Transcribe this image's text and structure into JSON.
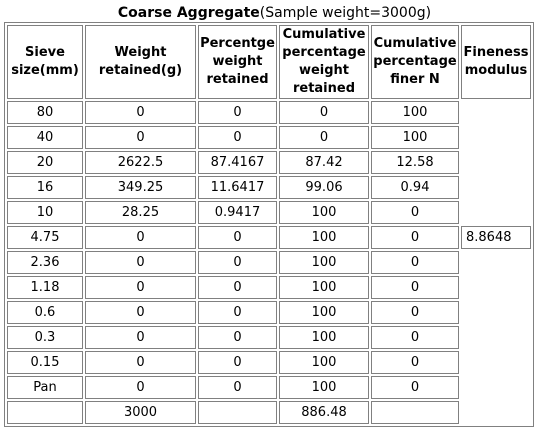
{
  "caption": {
    "title": "Coarse Aggregate",
    "subtitle": "(Sample weight=3000g)"
  },
  "headers": [
    "Sieve size(mm)",
    "Weight retained(g)",
    "Percentge weight retained",
    "Cumulative percentage weight retained",
    "Cumulative percentage finer N",
    "Fineness modulus"
  ],
  "rows": [
    [
      "80",
      "0",
      "0",
      "0",
      "100"
    ],
    [
      "40",
      "0",
      "0",
      "0",
      "100"
    ],
    [
      "20",
      "2622.5",
      "87.4167",
      "87.42",
      "12.58"
    ],
    [
      "16",
      "349.25",
      "11.6417",
      "99.06",
      "0.94"
    ],
    [
      "10",
      "28.25",
      "0.9417",
      "100",
      "0"
    ],
    [
      "4.75",
      "0",
      "0",
      "100",
      "0"
    ],
    [
      "2.36",
      "0",
      "0",
      "100",
      "0"
    ],
    [
      "1.18",
      "0",
      "0",
      "100",
      "0"
    ],
    [
      "0.6",
      "0",
      "0",
      "100",
      "0"
    ],
    [
      "0.3",
      "0",
      "0",
      "100",
      "0"
    ],
    [
      "0.15",
      "0",
      "0",
      "100",
      "0"
    ],
    [
      "Pan",
      "0",
      "0",
      "100",
      "0"
    ]
  ],
  "totals": [
    "",
    "3000",
    "",
    "886.48",
    ""
  ],
  "fineness_modulus": "8.8648"
}
